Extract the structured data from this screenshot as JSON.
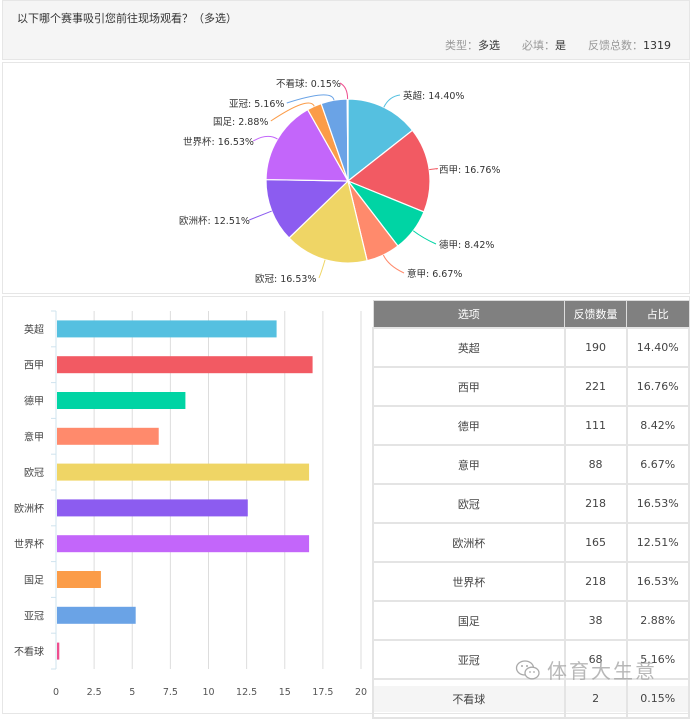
{
  "question": {
    "title": "以下哪个赛事吸引您前往现场观看？（多选）",
    "type_label": "类型：",
    "type_value": "多选",
    "required_label": "必填：",
    "required_value": "是",
    "total_label": "反馈总数：",
    "total_value": "1319"
  },
  "table": {
    "headers": [
      "选项",
      "反馈数量",
      "占比"
    ],
    "rows": [
      {
        "option": "英超",
        "count": "190",
        "percent": "14.40%"
      },
      {
        "option": "西甲",
        "count": "221",
        "percent": "16.76%"
      },
      {
        "option": "德甲",
        "count": "111",
        "percent": "8.42%"
      },
      {
        "option": "意甲",
        "count": "88",
        "percent": "6.67%"
      },
      {
        "option": "欧冠",
        "count": "218",
        "percent": "16.53%"
      },
      {
        "option": "欧洲杯",
        "count": "165",
        "percent": "12.51%"
      },
      {
        "option": "世界杯",
        "count": "218",
        "percent": "16.53%"
      },
      {
        "option": "国足",
        "count": "38",
        "percent": "2.88%"
      },
      {
        "option": "亚冠",
        "count": "68",
        "percent": "5.16%"
      },
      {
        "option": "不看球",
        "count": "2",
        "percent": "0.15%"
      }
    ]
  },
  "watermark": "体育大生意",
  "chart_data": [
    {
      "type": "pie",
      "title": "",
      "categories": [
        "英超",
        "西甲",
        "德甲",
        "意甲",
        "欧冠",
        "欧洲杯",
        "世界杯",
        "国足",
        "亚冠",
        "不看球"
      ],
      "values": [
        14.4,
        16.76,
        8.42,
        6.67,
        16.53,
        12.51,
        16.53,
        2.88,
        5.16,
        0.15
      ],
      "labels": [
        "英超: 14.40%",
        "西甲: 16.76%",
        "德甲: 8.42%",
        "意甲: 6.67%",
        "欧冠: 16.53%",
        "欧洲杯: 12.51%",
        "世界杯: 16.53%",
        "国足: 2.88%",
        "亚冠: 5.16%",
        "不看球: 0.15%"
      ],
      "colors": [
        "#55c0e0",
        "#f25a63",
        "#00d4a4",
        "#ff8a6c",
        "#efd565",
        "#8c5cf0",
        "#c366fa",
        "#fb9c48",
        "#6aa3e6",
        "#ef4f8f"
      ]
    },
    {
      "type": "bar",
      "orientation": "horizontal",
      "categories": [
        "英超",
        "西甲",
        "德甲",
        "意甲",
        "欧冠",
        "欧洲杯",
        "世界杯",
        "国足",
        "亚冠",
        "不看球"
      ],
      "values": [
        14.4,
        16.76,
        8.42,
        6.67,
        16.53,
        12.51,
        16.53,
        2.88,
        5.16,
        0.15
      ],
      "xticks": [
        "0",
        "2.5",
        "5",
        "7.5",
        "10",
        "12.5",
        "15",
        "17.5",
        "20"
      ],
      "xlim": [
        0,
        20
      ],
      "grid": true,
      "xlabel": "",
      "ylabel": "",
      "colors": [
        "#55c0e0",
        "#f25a63",
        "#00d4a4",
        "#ff8a6c",
        "#efd565",
        "#8c5cf0",
        "#c366fa",
        "#fb9c48",
        "#6aa3e6",
        "#ef4f8f"
      ]
    }
  ]
}
